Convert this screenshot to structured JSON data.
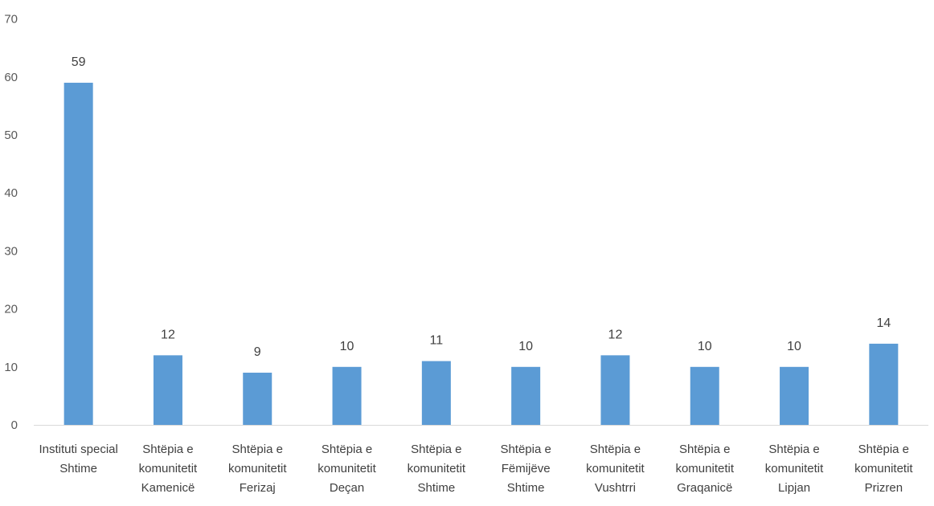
{
  "chart_data": {
    "type": "bar",
    "categories": [
      [
        "Instituti special",
        "Shtime"
      ],
      [
        "Shtëpia e",
        "komunitetit",
        "Kamenicë"
      ],
      [
        "Shtëpia e",
        "komunitetit",
        "Ferizaj"
      ],
      [
        "Shtëpia e",
        "komunitetit",
        "Deçan"
      ],
      [
        "Shtëpia e",
        "komunitetit",
        "Shtime"
      ],
      [
        "Shtëpia e",
        "Fëmijëve",
        "Shtime"
      ],
      [
        "Shtëpia e",
        "komunitetit",
        "Vushtrri"
      ],
      [
        "Shtëpia e",
        "komunitetit",
        "Graqanicë"
      ],
      [
        "Shtëpia e",
        "komunitetit",
        "Lipjan"
      ],
      [
        "Shtëpia e",
        "komunitetit",
        "Prizren"
      ]
    ],
    "values": [
      59,
      12,
      9,
      10,
      11,
      10,
      12,
      10,
      10,
      14
    ],
    "data_labels": [
      "59",
      "12",
      "9",
      "10",
      "11",
      "10",
      "12",
      "10",
      "10",
      "14"
    ],
    "yticks": [
      "0",
      "10",
      "20",
      "30",
      "40",
      "50",
      "60",
      "70"
    ],
    "ylim": [
      0,
      70
    ],
    "grid": false,
    "bar_color": "#5B9BD5",
    "axis_color": "#d9d9d9"
  }
}
